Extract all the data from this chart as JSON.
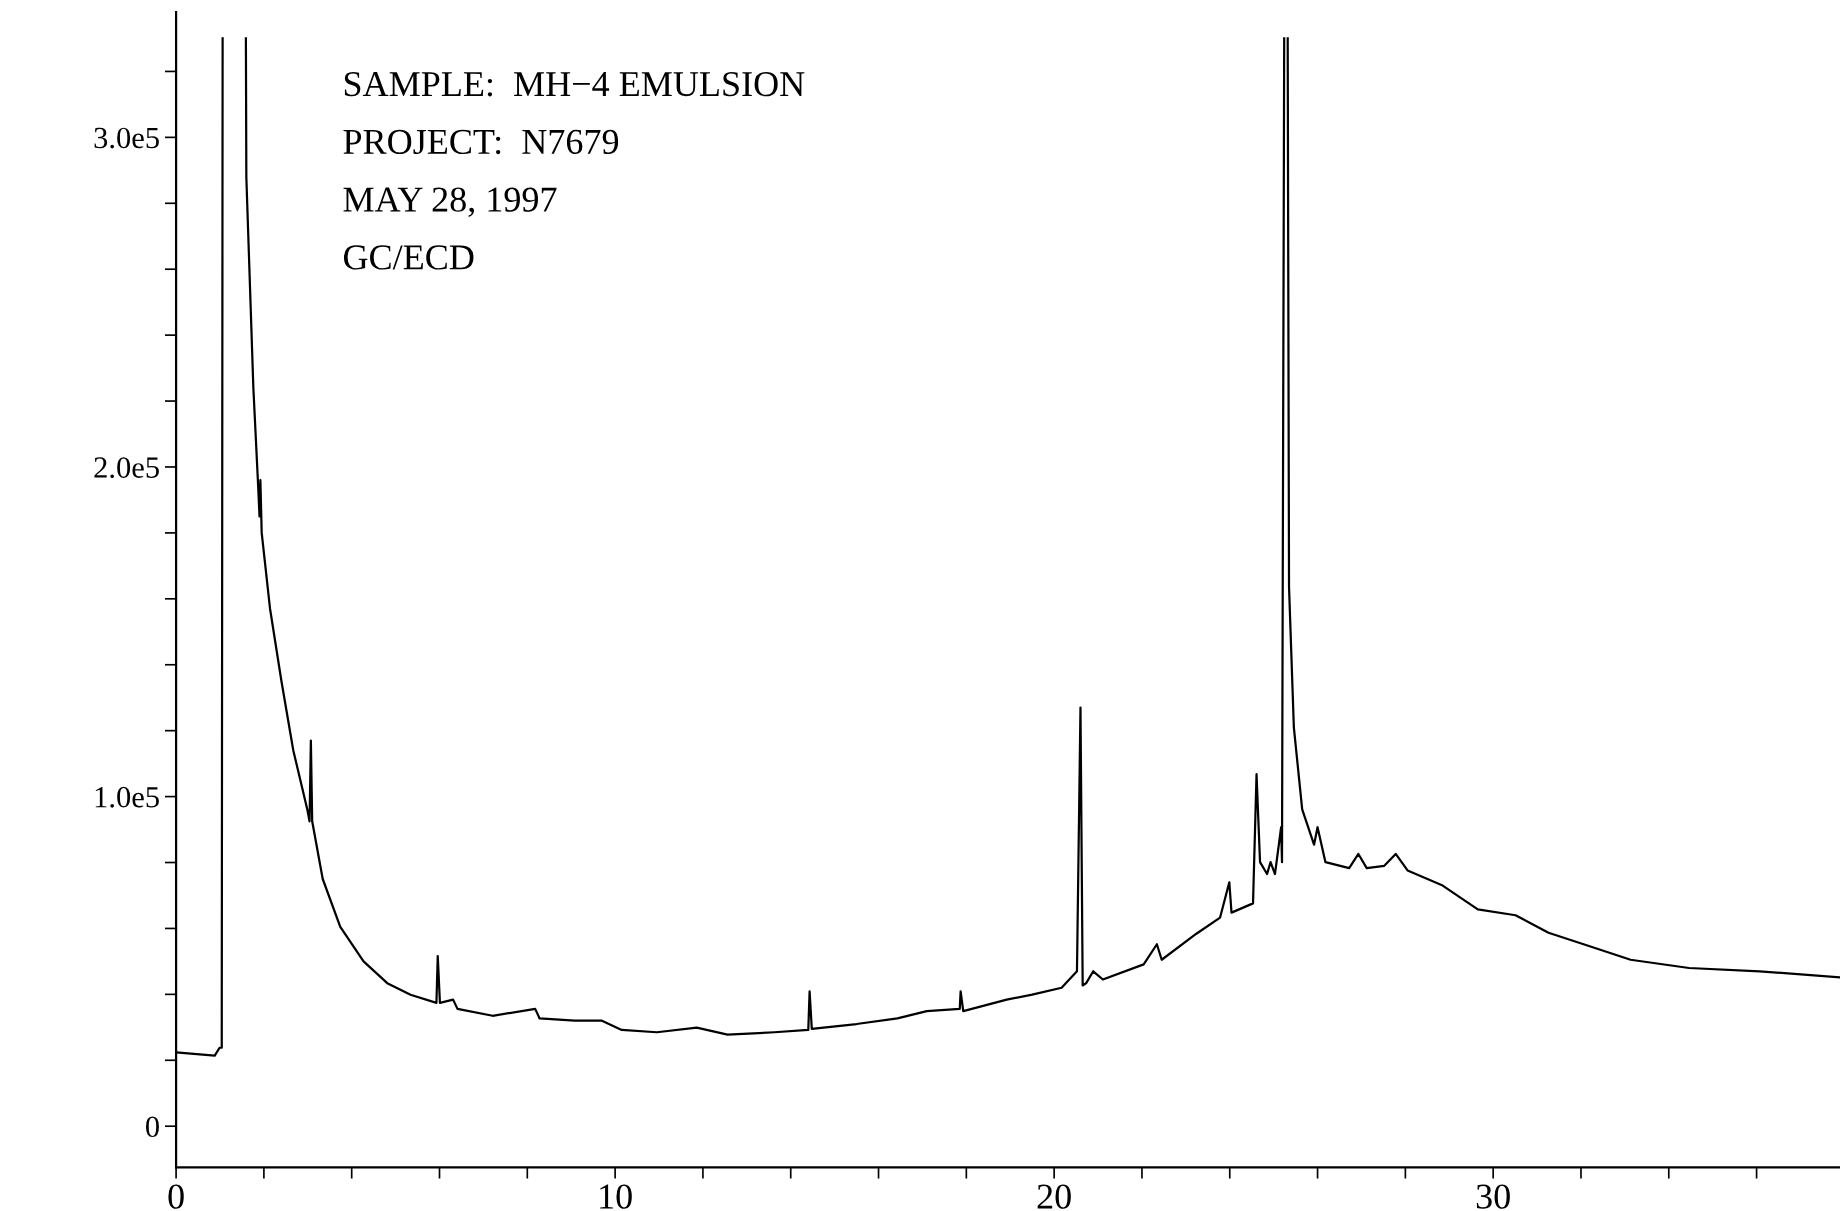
{
  "chart_data": {
    "type": "line",
    "annotations": [
      "SAMPLE:  MH−4 EMULSION",
      "PROJECT:  N7679",
      "MAY 28, 1997",
      "GC/ECD"
    ],
    "series": [
      {
        "color": "#000000",
        "x": [
          0,
          0.88,
          0.99,
          1.04,
          1.06,
          1.07,
          1.58,
          1.59,
          1.6,
          1.76,
          1.87,
          1.9,
          1.92,
          1.95,
          2.14,
          2.4,
          2.67,
          2.99,
          3.04,
          3.07,
          3.1,
          3.34,
          3.74,
          4.27,
          4.81,
          5.34,
          5.93,
          5.96,
          6.01,
          6.31,
          6.41,
          7.21,
          8.18,
          8.28,
          9.08,
          9.7,
          10.15,
          10.95,
          11.86,
          12.56,
          13.63,
          14.4,
          14.43,
          14.48,
          15.5,
          16.43,
          17.1,
          17.85,
          17.87,
          17.93,
          18.92,
          19.5,
          20.17,
          20.52,
          20.6,
          20.65,
          20.73,
          20.89,
          21.11,
          22.04,
          22.34,
          22.45,
          23.24,
          23.78,
          23.99,
          24.04,
          24.53,
          24.61,
          24.69,
          24.85,
          24.93,
          25.03,
          25.17,
          25.19,
          25.24,
          25.25,
          25.3,
          25.32,
          25.35,
          25.46,
          25.65,
          25.92,
          26.0,
          26.18,
          26.72,
          26.93,
          27.12,
          27.52,
          27.78,
          28.05,
          28.85,
          29.65,
          30.51,
          31.26,
          32.06,
          33.13,
          34.46,
          36.07,
          37.88
        ],
        "values": [
          22400,
          21400,
          23800,
          23800,
          330000,
          null,
          null,
          330000,
          288000,
          224000,
          194000,
          185000,
          196000,
          180000,
          157000,
          135000,
          114000,
          96000,
          92500,
          117000,
          92500,
          75000,
          60500,
          50000,
          43400,
          39900,
          37400,
          51600,
          37400,
          38400,
          35600,
          33500,
          35600,
          32700,
          32000,
          32000,
          29200,
          28500,
          29900,
          27800,
          28500,
          29200,
          40900,
          29500,
          31000,
          32700,
          34900,
          35600,
          40900,
          34900,
          38400,
          39900,
          42000,
          47000,
          127000,
          42700,
          43400,
          47000,
          44500,
          49100,
          55200,
          50500,
          58400,
          63300,
          74000,
          64800,
          67600,
          106800,
          80100,
          76500,
          80100,
          76500,
          90700,
          80100,
          330000,
          null,
          null,
          330000,
          163700,
          121000,
          96100,
          85400,
          90700,
          80100,
          78300,
          82600,
          78300,
          79000,
          82600,
          77600,
          73000,
          65800,
          64000,
          58700,
          55200,
          50500,
          48000,
          47000,
          45200
        ]
      }
    ],
    "xlim": [
      0,
      37.9
    ],
    "xticks": [
      0,
      {
        "value": 2,
        "label": null
      },
      {
        "value": 4,
        "label": null
      },
      {
        "value": 6,
        "label": null
      },
      {
        "value": 8,
        "label": null
      },
      10,
      {
        "value": 12,
        "label": null
      },
      {
        "value": 14,
        "label": null
      },
      {
        "value": 16,
        "label": null
      },
      {
        "value": 18,
        "label": null
      },
      20,
      {
        "value": 22,
        "label": null
      },
      {
        "value": 24,
        "label": null
      },
      {
        "value": 26,
        "label": null
      },
      {
        "value": 28,
        "label": null
      },
      30,
      {
        "value": 32,
        "label": null
      },
      {
        "value": 34,
        "label": null
      },
      {
        "value": 36,
        "label": null
      }
    ],
    "ylim": [
      -12500,
      338000
    ],
    "yticks": [
      0,
      {
        "value": 20000,
        "label": null
      },
      {
        "value": 40000,
        "label": null
      },
      {
        "value": 60000,
        "label": null
      },
      {
        "value": 80000,
        "label": null
      },
      {
        "value": 100000,
        "label": "1.0e5"
      },
      {
        "value": 120000,
        "label": null
      },
      {
        "value": 140000,
        "label": null
      },
      {
        "value": 160000,
        "label": null
      },
      {
        "value": 180000,
        "label": null
      },
      {
        "value": 200000,
        "label": "2.0e5"
      },
      {
        "value": 220000,
        "label": null
      },
      {
        "value": 240000,
        "label": null
      },
      {
        "value": 260000,
        "label": null
      },
      {
        "value": 280000,
        "label": null
      },
      {
        "value": 300000,
        "label": "3.0e5"
      },
      {
        "value": 320000,
        "label": null
      }
    ],
    "grid": false,
    "legend": false,
    "marker": "none",
    "line_style": "solid"
  }
}
